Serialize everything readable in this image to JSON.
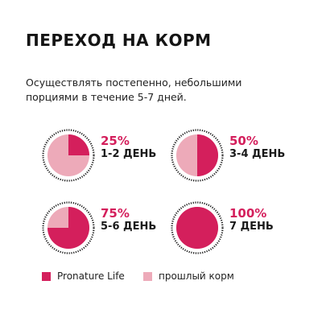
{
  "title": "ПЕРЕХОД НА КОРМ",
  "description": "Осуществлять постепенно, небольшими порциями в течение 5-7 дней.",
  "colors": {
    "new_food": "#d41f5c",
    "old_food": "#edaab9",
    "ring": "#1a1a1a"
  },
  "steps": [
    {
      "percent_label": "25%",
      "days": "1-2 ДЕНЬ",
      "new_share": 0.25
    },
    {
      "percent_label": "50%",
      "days": "3-4 ДЕНЬ",
      "new_share": 0.5
    },
    {
      "percent_label": "75%",
      "days": "5-6 ДЕНЬ",
      "new_share": 0.75
    },
    {
      "percent_label": "100%",
      "days": "7 ДЕНЬ",
      "new_share": 1.0
    }
  ],
  "legend": [
    {
      "label": "Pronature Life",
      "color": "#d41f5c"
    },
    {
      "label": "прошлый корм",
      "color": "#edaab9"
    }
  ]
}
